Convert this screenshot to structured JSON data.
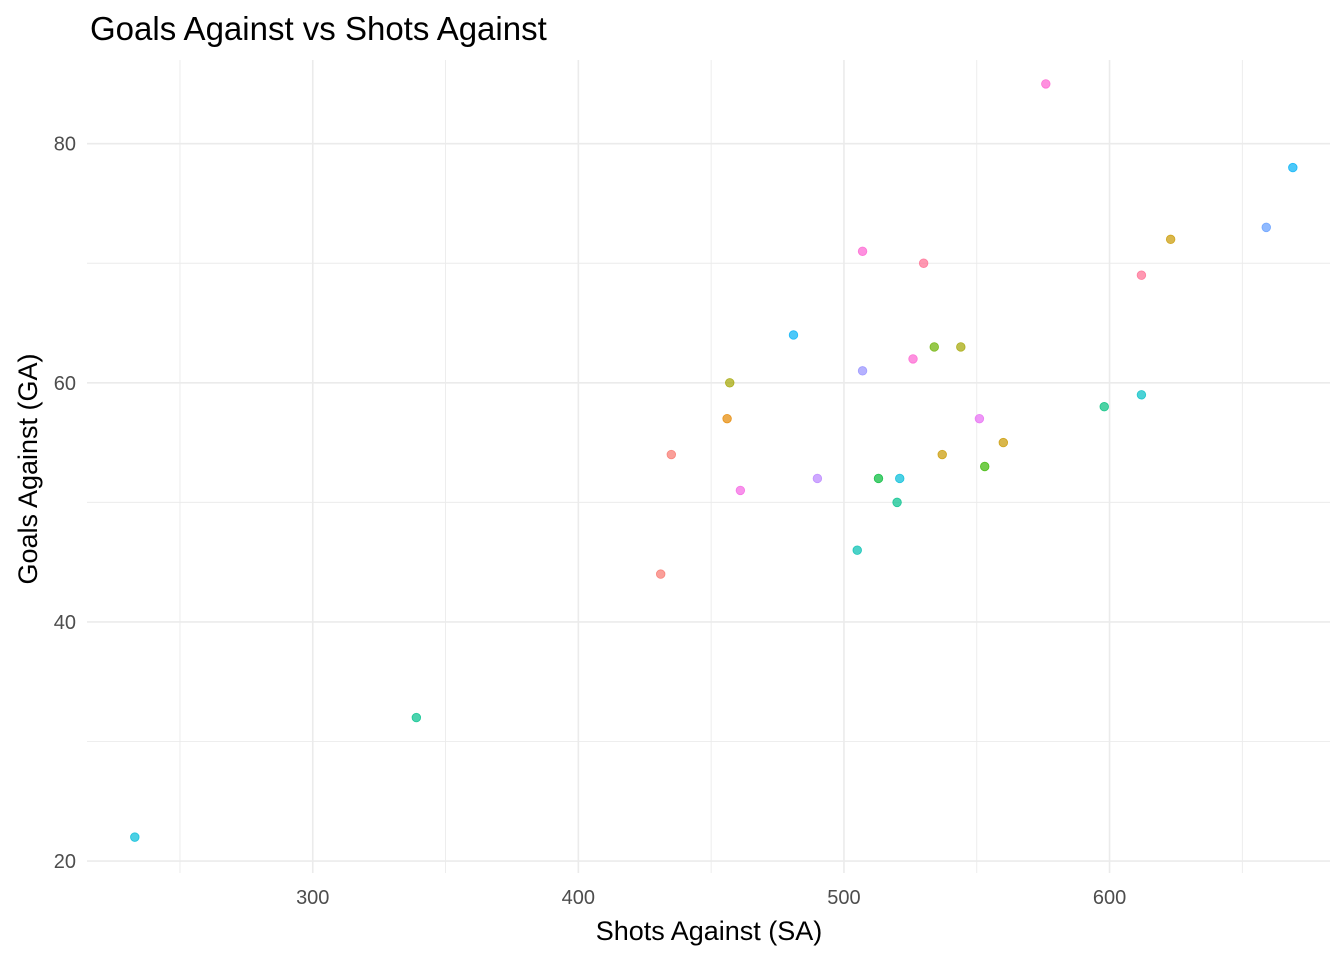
{
  "chart_data": {
    "type": "scatter",
    "title": "Goals Against vs Shots Against",
    "xlabel": "Shots Against (SA)",
    "ylabel": "Goals Against (GA)",
    "xlim": [
      215,
      683
    ],
    "ylim": [
      19,
      87
    ],
    "x_ticks": [
      300,
      400,
      500,
      600
    ],
    "y_ticks": [
      20,
      40,
      60,
      80
    ],
    "grid": true,
    "legend": "none",
    "points": [
      {
        "x": 233,
        "y": 22,
        "color": "#00bcd8"
      },
      {
        "x": 339,
        "y": 32,
        "color": "#00c08b"
      },
      {
        "x": 431,
        "y": 44,
        "color": "#f8766d"
      },
      {
        "x": 435,
        "y": 54,
        "color": "#f8766d"
      },
      {
        "x": 456,
        "y": 57,
        "color": "#e58700"
      },
      {
        "x": 457,
        "y": 60,
        "color": "#a3a500"
      },
      {
        "x": 461,
        "y": 51,
        "color": "#f564e3"
      },
      {
        "x": 481,
        "y": 64,
        "color": "#00b0f6"
      },
      {
        "x": 490,
        "y": 52,
        "color": "#b983ff"
      },
      {
        "x": 505,
        "y": 46,
        "color": "#00bfb0"
      },
      {
        "x": 507,
        "y": 61,
        "color": "#9590ff"
      },
      {
        "x": 507,
        "y": 71,
        "color": "#fd61d1"
      },
      {
        "x": 513,
        "y": 52,
        "color": "#00ba38"
      },
      {
        "x": 520,
        "y": 50,
        "color": "#00c08b"
      },
      {
        "x": 521,
        "y": 52,
        "color": "#00bcd8"
      },
      {
        "x": 526,
        "y": 62,
        "color": "#fd61d1"
      },
      {
        "x": 530,
        "y": 70,
        "color": "#ff6c91"
      },
      {
        "x": 534,
        "y": 63,
        "color": "#6bb100"
      },
      {
        "x": 537,
        "y": 54,
        "color": "#c99800"
      },
      {
        "x": 544,
        "y": 63,
        "color": "#a3a500"
      },
      {
        "x": 551,
        "y": 57,
        "color": "#e76bf3"
      },
      {
        "x": 553,
        "y": 53,
        "color": "#39b600"
      },
      {
        "x": 560,
        "y": 55,
        "color": "#c99800"
      },
      {
        "x": 576,
        "y": 85,
        "color": "#fd61d1"
      },
      {
        "x": 598,
        "y": 58,
        "color": "#00bf7d"
      },
      {
        "x": 612,
        "y": 59,
        "color": "#00bfc4"
      },
      {
        "x": 612,
        "y": 69,
        "color": "#ff6c91"
      },
      {
        "x": 623,
        "y": 72,
        "color": "#c99800"
      },
      {
        "x": 659,
        "y": 73,
        "color": "#619cff"
      },
      {
        "x": 669,
        "y": 78,
        "color": "#00b0f6"
      }
    ]
  }
}
